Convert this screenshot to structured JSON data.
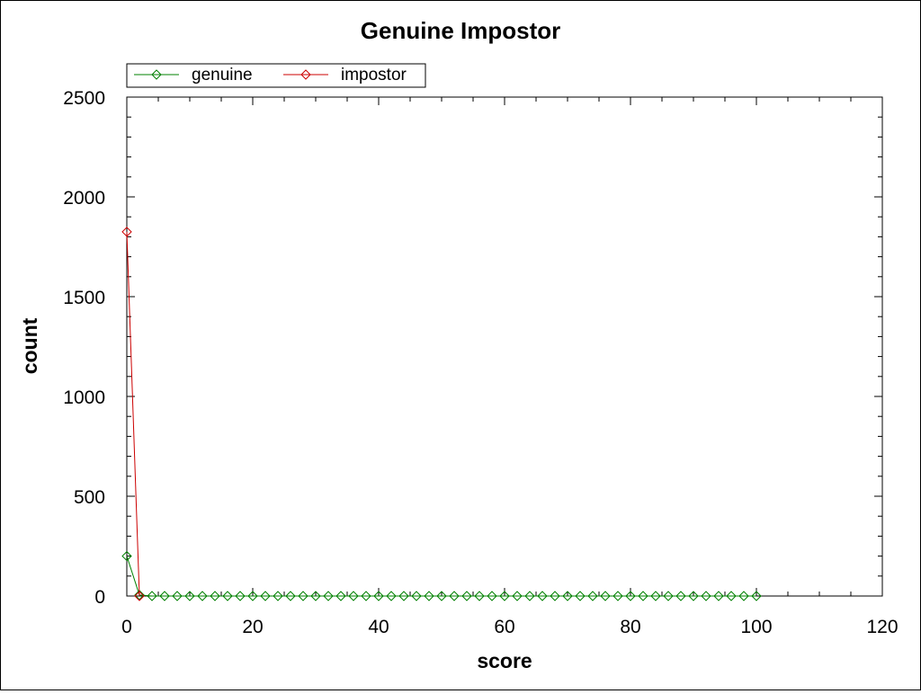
{
  "chart_data": {
    "type": "line",
    "title": "Genuine Impostor",
    "xlabel": "score",
    "ylabel": "count",
    "xlim": [
      0,
      120
    ],
    "ylim": [
      0,
      2500
    ],
    "xticks": [
      0,
      20,
      40,
      60,
      80,
      100,
      120
    ],
    "xtick_labels": [
      "0",
      "20",
      "40",
      "60",
      "80",
      "100",
      "120"
    ],
    "yticks": [
      0,
      500,
      1000,
      1500,
      2000,
      2500
    ],
    "ytick_labels": [
      "0",
      "500",
      "1000",
      "1500",
      "2000",
      "2500"
    ],
    "grid": false,
    "legend_position": "top-left",
    "series": [
      {
        "name": "genuine",
        "color": "#008000",
        "marker": "diamond",
        "x": [
          0,
          2,
          4,
          6,
          8,
          10,
          12,
          14,
          16,
          18,
          20,
          22,
          24,
          26,
          28,
          30,
          32,
          34,
          36,
          38,
          40,
          42,
          44,
          46,
          48,
          50,
          52,
          54,
          56,
          58,
          60,
          62,
          64,
          66,
          68,
          70,
          72,
          74,
          76,
          78,
          80,
          82,
          84,
          86,
          88,
          90,
          92,
          94,
          96,
          98,
          100
        ],
        "y": [
          200,
          5,
          0,
          0,
          0,
          0,
          0,
          0,
          0,
          0,
          0,
          0,
          0,
          0,
          0,
          0,
          0,
          0,
          0,
          0,
          0,
          0,
          0,
          0,
          0,
          0,
          0,
          0,
          0,
          0,
          0,
          0,
          0,
          0,
          0,
          0,
          0,
          0,
          0,
          0,
          0,
          0,
          0,
          0,
          0,
          0,
          0,
          0,
          0,
          0,
          0
        ]
      },
      {
        "name": "impostor",
        "color": "#cc0000",
        "marker": "diamond",
        "x": [
          0,
          2
        ],
        "y": [
          1825,
          0
        ]
      }
    ]
  }
}
